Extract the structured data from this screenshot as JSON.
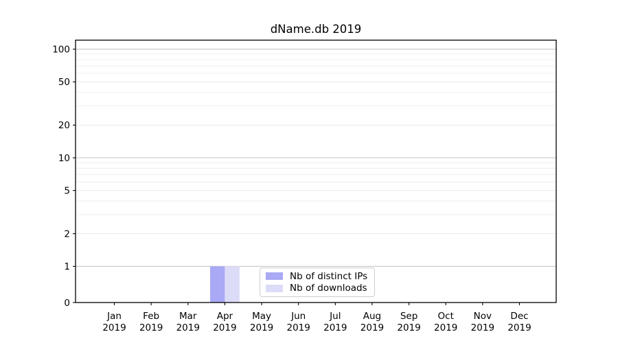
{
  "title": "dName.db 2019",
  "chart_data": {
    "type": "bar",
    "title": "dName.db 2019",
    "categories": [
      "Jan",
      "Feb",
      "Mar",
      "Apr",
      "May",
      "Jun",
      "Jul",
      "Aug",
      "Sep",
      "Oct",
      "Nov",
      "Dec"
    ],
    "year_label": "2019",
    "series": [
      {
        "name": "Nb of distinct IPs",
        "color": "#a9a9f5",
        "values": [
          0,
          0,
          0,
          1,
          0,
          0,
          0,
          0,
          0,
          0,
          0,
          0
        ]
      },
      {
        "name": "Nb of downloads",
        "color": "#dcdcf9",
        "values": [
          0,
          0,
          0,
          1,
          0,
          0,
          0,
          0,
          0,
          0,
          0,
          0
        ]
      }
    ],
    "yscale": "symlog",
    "ylim": [
      0,
      120
    ],
    "y_major_ticks": [
      0,
      1,
      2,
      5,
      10,
      20,
      50,
      100
    ],
    "y_minor_gridlines": [
      3,
      4,
      6,
      7,
      8,
      9,
      30,
      40,
      60,
      70,
      80,
      90
    ],
    "grid": "both",
    "legend_position": "lower center",
    "colors": {
      "axis": "#000000",
      "grid_decade": "#c6c6c6",
      "grid_minor": "#ececec",
      "tick_label": "#000000",
      "background": "#ffffff"
    }
  }
}
